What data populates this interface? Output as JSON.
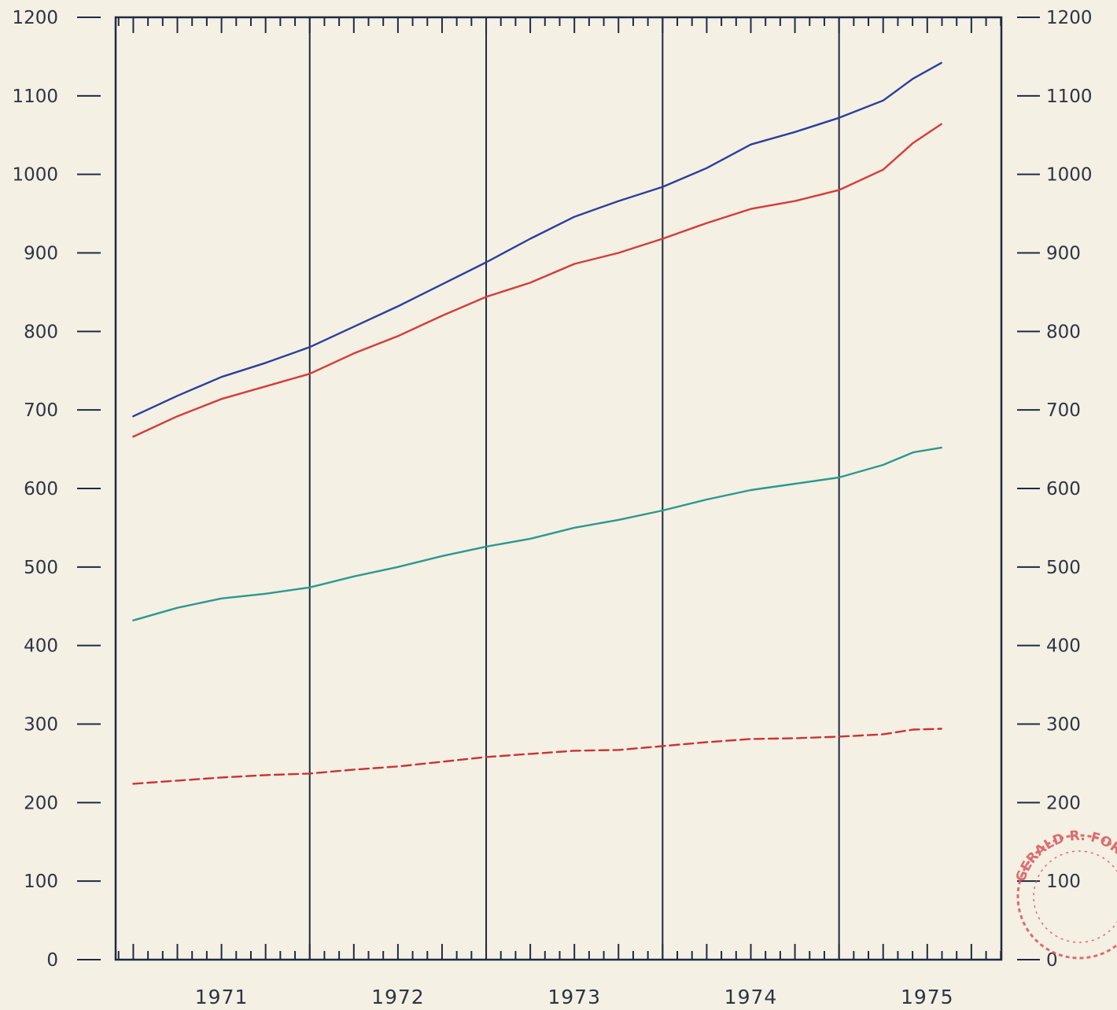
{
  "chart_data": {
    "type": "line",
    "title": "",
    "xlabel": "",
    "ylabel": "",
    "x_tick_labels": [
      "1971",
      "1972",
      "1973",
      "1974",
      "1975"
    ],
    "y_ticks": [
      0,
      100,
      200,
      300,
      400,
      500,
      600,
      700,
      800,
      900,
      1000,
      1100,
      1200
    ],
    "y_tick_labels": [
      "0",
      "100",
      "200",
      "300",
      "400",
      "500",
      "600",
      "700",
      "800",
      "900",
      "1000",
      "1100",
      "1200"
    ],
    "ylim": [
      0,
      1200
    ],
    "xlim": [
      1970.9,
      1975.92
    ],
    "grid": "vertical year dividers, monthly tick marks at top and bottom",
    "y_axis_on_both_sides": true,
    "series": [
      {
        "color": "#2b3f9e",
        "style": "solid",
        "x": [
          1971.0,
          1971.25,
          1971.5,
          1971.75,
          1972.0,
          1972.25,
          1972.5,
          1972.75,
          1973.0,
          1973.25,
          1973.5,
          1973.75,
          1974.0,
          1974.25,
          1974.5,
          1974.75,
          1975.0,
          1975.25,
          1975.42,
          1975.58
        ],
        "values": [
          692,
          718,
          742,
          760,
          780,
          806,
          832,
          860,
          888,
          918,
          946,
          966,
          984,
          1008,
          1038,
          1054,
          1072,
          1094,
          1122,
          1142
        ]
      },
      {
        "color": "#d63b3b",
        "style": "solid",
        "x": [
          1971.0,
          1971.25,
          1971.5,
          1971.75,
          1972.0,
          1972.25,
          1972.5,
          1972.75,
          1973.0,
          1973.25,
          1973.5,
          1973.75,
          1974.0,
          1974.25,
          1974.5,
          1974.75,
          1975.0,
          1975.25,
          1975.42,
          1975.58
        ],
        "values": [
          666,
          692,
          714,
          730,
          746,
          772,
          794,
          820,
          844,
          862,
          886,
          900,
          918,
          938,
          956,
          966,
          980,
          1006,
          1040,
          1064
        ]
      },
      {
        "color": "#2a9a8f",
        "style": "solid",
        "x": [
          1971.0,
          1971.25,
          1971.5,
          1971.75,
          1972.0,
          1972.25,
          1972.5,
          1972.75,
          1973.0,
          1973.25,
          1973.5,
          1973.75,
          1974.0,
          1974.25,
          1974.5,
          1974.75,
          1975.0,
          1975.25,
          1975.42,
          1975.58
        ],
        "values": [
          432,
          448,
          460,
          466,
          474,
          488,
          500,
          514,
          526,
          536,
          550,
          560,
          572,
          586,
          598,
          606,
          614,
          630,
          646,
          652
        ]
      },
      {
        "color": "#cc3232",
        "style": "dashed",
        "x": [
          1971.0,
          1971.25,
          1971.5,
          1971.75,
          1972.0,
          1972.25,
          1972.5,
          1972.75,
          1973.0,
          1973.25,
          1973.5,
          1973.75,
          1974.0,
          1974.25,
          1974.5,
          1974.75,
          1975.0,
          1975.25,
          1975.42,
          1975.58
        ],
        "values": [
          224,
          228,
          232,
          235,
          237,
          242,
          246,
          252,
          258,
          262,
          266,
          267,
          272,
          277,
          281,
          282,
          284,
          287,
          293,
          294
        ]
      }
    ]
  },
  "stamp": {
    "text": "GERALD R. FORD",
    "color": "#d9555b"
  }
}
